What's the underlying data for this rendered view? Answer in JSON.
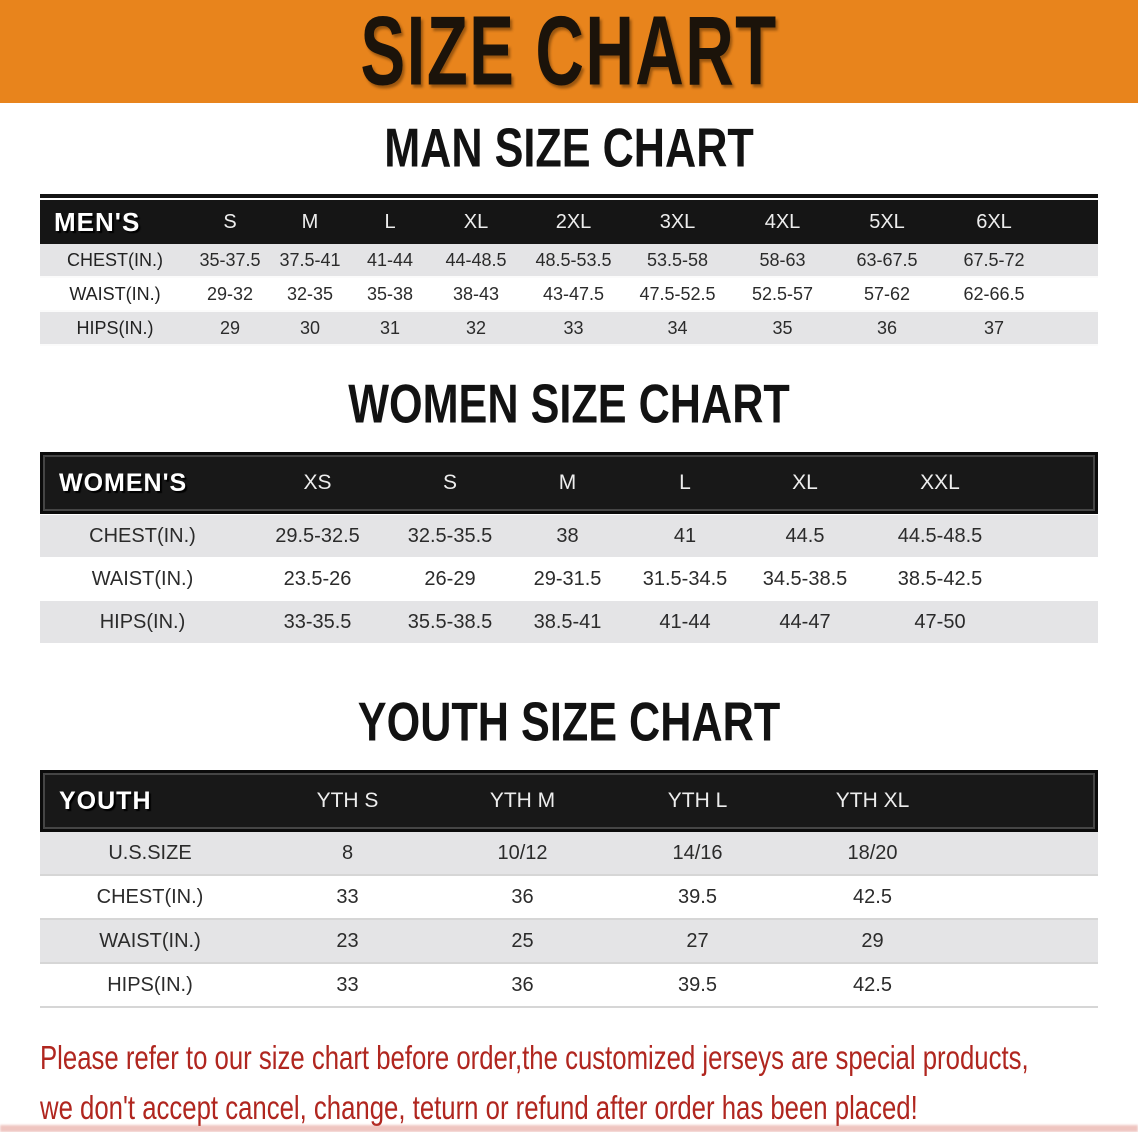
{
  "banner": {
    "title": "SIZE CHART"
  },
  "theme": {
    "banner_bg": "#E8841C",
    "header_bg": "#151515",
    "row_stripe": "#E4E4E6",
    "accent_red": "#B0261F"
  },
  "men": {
    "heading": "MAN SIZE CHART",
    "corner": "MEN'S",
    "sizes": [
      "S",
      "M",
      "L",
      "XL",
      "2XL",
      "3XL",
      "4XL",
      "5XL",
      "6XL"
    ],
    "chest": {
      "label": "CHEST(IN.)",
      "values": [
        "35-37.5",
        "37.5-41",
        "41-44",
        "44-48.5",
        "48.5-53.5",
        "53.5-58",
        "58-63",
        "63-67.5",
        "67.5-72"
      ]
    },
    "waist": {
      "label": "WAIST(IN.)",
      "values": [
        "29-32",
        "32-35",
        "35-38",
        "38-43",
        "43-47.5",
        "47.5-52.5",
        "52.5-57",
        "57-62",
        "62-66.5"
      ]
    },
    "hips": {
      "label": "HIPS(IN.)",
      "values": [
        "29",
        "30",
        "31",
        "32",
        "33",
        "34",
        "35",
        "36",
        "37"
      ]
    }
  },
  "women": {
    "heading": "WOMEN SIZE CHART",
    "corner": "WOMEN'S",
    "sizes": [
      "XS",
      "S",
      "M",
      "L",
      "XL",
      "XXL"
    ],
    "chest": {
      "label": "CHEST(IN.)",
      "values": [
        "29.5-32.5",
        "32.5-35.5",
        "38",
        "41",
        "44.5",
        "44.5-48.5"
      ]
    },
    "waist": {
      "label": "WAIST(IN.)",
      "values": [
        "23.5-26",
        "26-29",
        "29-31.5",
        "31.5-34.5",
        "34.5-38.5",
        "38.5-42.5"
      ]
    },
    "hips": {
      "label": "HIPS(IN.)",
      "values": [
        "33-35.5",
        "35.5-38.5",
        "38.5-41",
        "41-44",
        "44-47",
        "47-50"
      ]
    }
  },
  "youth": {
    "heading": "YOUTH SIZE CHART",
    "corner": "YOUTH",
    "sizes": [
      "YTH S",
      "YTH M",
      "YTH L",
      "YTH XL"
    ],
    "ussize": {
      "label": "U.S.SIZE",
      "values": [
        "8",
        "10/12",
        "14/16",
        "18/20"
      ]
    },
    "chest": {
      "label": "CHEST(IN.)",
      "values": [
        "33",
        "36",
        "39.5",
        "42.5"
      ]
    },
    "waist": {
      "label": "WAIST(IN.)",
      "values": [
        "23",
        "25",
        "27",
        "29"
      ]
    },
    "hips": {
      "label": "HIPS(IN.)",
      "values": [
        "33",
        "36",
        "39.5",
        "42.5"
      ]
    }
  },
  "disclaimer": {
    "line1": "Please refer to our size chart before order,the customized jerseys are special products,",
    "line2": "we don't accept cancel, change, teturn or refund after order has been placed!"
  }
}
